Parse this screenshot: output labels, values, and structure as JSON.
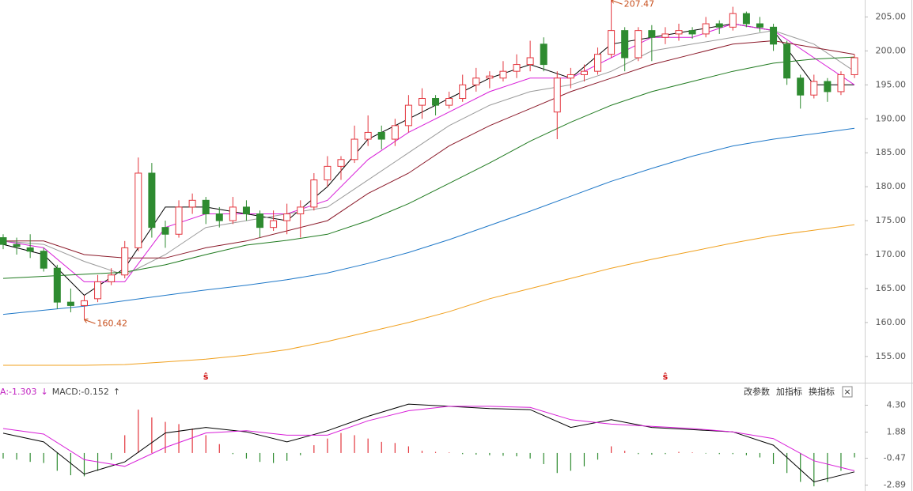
{
  "chart_data": [
    {
      "type": "candlestick",
      "open": [
        172.5,
        171.5,
        171,
        170.5,
        168,
        163,
        162.5,
        163.5,
        166,
        167,
        171,
        182,
        174,
        173,
        177,
        178,
        176,
        175,
        177,
        176,
        174,
        175,
        176,
        177,
        181,
        183,
        184,
        187,
        188,
        187,
        189,
        192,
        193,
        192,
        193,
        195,
        196,
        196,
        197,
        198,
        201,
        191,
        196,
        196.5,
        197,
        199.5,
        203,
        199,
        203,
        202,
        202.5,
        203,
        202.5,
        204,
        203.5,
        205.5,
        204,
        203.5,
        201,
        196,
        193.5,
        195.5,
        194,
        196.5
      ],
      "high": [
        173,
        172.5,
        173,
        171,
        168.5,
        165,
        164,
        167,
        168,
        172,
        184.3,
        183.5,
        175,
        178,
        179,
        178.5,
        177,
        178.5,
        178,
        176.5,
        176.5,
        177.5,
        178,
        182,
        184.5,
        184.5,
        189,
        190.5,
        189,
        190,
        193.5,
        194.5,
        193.5,
        194,
        196.5,
        197.5,
        197,
        198.5,
        199.5,
        201.5,
        202,
        197,
        197.5,
        198,
        200.5,
        207.47,
        203.5,
        203.5,
        203.8,
        203.5,
        204,
        203.5,
        205,
        204.5,
        206.5,
        205.8,
        205,
        204,
        201.5,
        196.5,
        196.5,
        196,
        197,
        199.5
      ],
      "low": [
        170.8,
        170,
        169.5,
        167.5,
        162,
        161.5,
        160.42,
        163,
        165.5,
        166.5,
        170.5,
        172.5,
        171,
        172.5,
        176,
        174.5,
        174,
        174.5,
        175,
        172.5,
        173.5,
        173,
        172.5,
        176.5,
        180,
        181,
        183.5,
        186,
        185.5,
        186,
        188,
        190,
        190.5,
        191.5,
        192.5,
        194,
        194.5,
        195.5,
        196,
        197,
        197,
        187,
        194.5,
        195.5,
        196.5,
        199,
        197,
        198.5,
        198.5,
        201,
        201.5,
        201.8,
        202,
        202.5,
        203,
        203.5,
        202.8,
        200,
        195,
        191.5,
        193,
        192.5,
        193.5,
        196
      ],
      "close": [
        171.5,
        171.2,
        170.5,
        168,
        163,
        162.5,
        163.2,
        166,
        167,
        171,
        182,
        174,
        173,
        177,
        178,
        176,
        175,
        177,
        176,
        174,
        175,
        176,
        177,
        181,
        183,
        184,
        187,
        188,
        187,
        189,
        192,
        193,
        192,
        193,
        195,
        196,
        196.3,
        197,
        198,
        199,
        198,
        196,
        196.5,
        197,
        199.5,
        203,
        199,
        203,
        202,
        202.5,
        203,
        202.5,
        204,
        203.5,
        205.5,
        204,
        203.5,
        201,
        196,
        193.5,
        195.5,
        194,
        196.5,
        199
      ],
      "up_color": "#e3353d",
      "down_color": "#2e8b30",
      "ylim": [
        153,
        207.5
      ],
      "yticks": [
        {
          "value": 155,
          "label": "155.00"
        },
        {
          "value": 160,
          "label": "160.00"
        },
        {
          "value": 165,
          "label": "165.00"
        },
        {
          "value": 170,
          "label": "170.00"
        },
        {
          "value": 175,
          "label": "175.00"
        },
        {
          "value": 180,
          "label": "180.00"
        },
        {
          "value": 185,
          "label": "185.00"
        },
        {
          "value": 190,
          "label": "190.00"
        },
        {
          "value": 195,
          "label": "195.00"
        },
        {
          "value": 200,
          "label": "200.00"
        },
        {
          "value": 205,
          "label": "205.00"
        }
      ],
      "lines": [
        {
          "color": "#000000",
          "x": [
            0,
            3,
            6,
            9,
            12,
            15,
            18,
            21,
            24,
            27,
            30,
            33,
            36,
            39,
            42,
            45,
            48,
            51,
            54,
            57,
            60,
            63
          ],
          "values": [
            171.5,
            170,
            164,
            168,
            177,
            177,
            176,
            175,
            180,
            187,
            190,
            193,
            196,
            198,
            196,
            201,
            202,
            203,
            204,
            203,
            195,
            195
          ]
        },
        {
          "color": "#d81ed8",
          "x": [
            0,
            3,
            6,
            9,
            12,
            15,
            18,
            21,
            24,
            27,
            30,
            33,
            36,
            39,
            42,
            45,
            48,
            51,
            54,
            57,
            60,
            63
          ],
          "values": [
            172,
            171,
            166,
            166,
            174,
            176,
            176,
            176,
            178,
            184,
            188,
            191,
            194,
            196,
            196,
            199,
            202,
            202,
            204,
            203,
            199,
            195
          ]
        },
        {
          "color": "#9a9a9a",
          "x": [
            0,
            3,
            6,
            9,
            12,
            15,
            18,
            21,
            24,
            27,
            30,
            33,
            36,
            39,
            42,
            45,
            48,
            51,
            54,
            57,
            60,
            63
          ],
          "values": [
            172,
            171.5,
            169,
            167,
            170,
            174,
            175,
            176,
            177,
            181,
            185,
            189,
            192,
            194,
            195,
            197,
            200,
            201,
            202,
            203,
            201,
            197
          ]
        },
        {
          "color": "#8b1a2a",
          "x": [
            0,
            3,
            6,
            9,
            12,
            15,
            18,
            21,
            24,
            27,
            30,
            33,
            36,
            39,
            42,
            45,
            48,
            51,
            54,
            57,
            60,
            63
          ],
          "values": [
            172,
            172,
            170,
            169.5,
            169.5,
            171,
            172,
            173.5,
            175,
            179,
            182,
            186,
            189,
            191.5,
            194,
            196,
            198,
            199.5,
            201,
            201.5,
            200.5,
            199.5
          ]
        },
        {
          "color": "#1f7a1f",
          "x": [
            0,
            3,
            6,
            9,
            12,
            15,
            18,
            21,
            24,
            27,
            30,
            33,
            36,
            39,
            42,
            45,
            48,
            51,
            54,
            57,
            60,
            63
          ],
          "values": [
            166.5,
            166.8,
            167.1,
            167.4,
            168.5,
            170,
            171.4,
            172.1,
            173,
            175,
            177.5,
            180.5,
            183.5,
            186.7,
            189.5,
            192,
            194,
            195.5,
            197,
            198.2,
            198.8,
            199.1
          ]
        },
        {
          "color": "#1f78c8",
          "x": [
            0,
            3,
            6,
            9,
            12,
            15,
            18,
            21,
            24,
            27,
            30,
            33,
            36,
            39,
            42,
            45,
            48,
            51,
            54,
            57,
            60,
            63
          ],
          "values": [
            161.2,
            161.8,
            162.4,
            163.2,
            164,
            164.8,
            165.5,
            166.3,
            167.3,
            168.7,
            170.3,
            172.2,
            174.3,
            176.4,
            178.6,
            180.8,
            182.7,
            184.5,
            186,
            187,
            187.8,
            188.6
          ]
        },
        {
          "color": "#f0a01e",
          "x": [
            0,
            3,
            6,
            9,
            12,
            15,
            18,
            21,
            24,
            27,
            30,
            33,
            36,
            39,
            42,
            45,
            48,
            51,
            54,
            57,
            60,
            63
          ],
          "values": [
            153.7,
            153.7,
            153.7,
            153.8,
            154.2,
            154.6,
            155.2,
            156,
            157.2,
            158.6,
            160,
            161.6,
            163.5,
            165,
            166.5,
            168,
            169.3,
            170.5,
            171.7,
            172.8,
            173.6,
            174.4
          ]
        }
      ],
      "annotations": [
        {
          "x": 45,
          "value": 207.47,
          "color": "#c8501e"
        },
        {
          "x": 6,
          "value": 160.42,
          "color": "#c8501e"
        }
      ],
      "signals": {
        "x": [
          15,
          49
        ],
        "labels": [
          "ŝ",
          "ŝ"
        ],
        "color": "#d01010"
      }
    },
    {
      "type": "macd",
      "legend": [
        {
          "text": "A:-1.303",
          "color": "#c020c0"
        },
        {
          "text": "↓",
          "color": "#c020c0"
        },
        {
          "text": "MACD:-0.152",
          "color": "#444444"
        },
        {
          "text": "↑",
          "color": "#444444"
        }
      ],
      "histogram": [
        -0.5,
        -0.6,
        -0.8,
        -0.9,
        -1.6,
        -2.0,
        -2.1,
        -1.6,
        -0.6,
        1.6,
        3.9,
        3.2,
        2.8,
        2.6,
        2.2,
        1.6,
        0.8,
        -0.1,
        -0.5,
        -0.8,
        -0.9,
        -0.7,
        -0.2,
        0.7,
        1.3,
        1.8,
        1.6,
        1.3,
        1.0,
        0.9,
        0.6,
        0.2,
        0.1,
        0.05,
        -0.1,
        -0.15,
        -0.2,
        -0.25,
        -0.3,
        -0.5,
        -1.0,
        -1.8,
        -1.6,
        -1.2,
        -0.6,
        0.6,
        0.2,
        -0.1,
        -0.15,
        -0.1,
        0.1,
        0.05,
        -0.05,
        -0.1,
        -0.1,
        -0.2,
        -0.4,
        -1.0,
        -1.8,
        -2.6,
        -3.0,
        -2.6,
        -1.6,
        -0.4
      ],
      "up_color": "#e3353d",
      "down_color": "#2e8b30",
      "lines": [
        {
          "color": "#000000",
          "x": [
            0,
            3,
            6,
            9,
            12,
            15,
            18,
            21,
            24,
            27,
            30,
            33,
            36,
            39,
            42,
            45,
            48,
            51,
            54,
            57,
            60,
            63
          ],
          "values": [
            1.78,
            1.0,
            -1.9,
            -0.8,
            1.8,
            2.3,
            1.9,
            1.0,
            2.0,
            3.3,
            4.4,
            4.2,
            4.0,
            3.9,
            2.3,
            3.0,
            2.3,
            2.1,
            1.9,
            0.7,
            -2.6,
            -1.7
          ]
        },
        {
          "color": "#d81ed8",
          "x": [
            0,
            3,
            6,
            9,
            12,
            15,
            18,
            21,
            24,
            27,
            30,
            33,
            36,
            39,
            42,
            45,
            48,
            51,
            54,
            57,
            60,
            63
          ],
          "values": [
            2.2,
            1.7,
            -0.6,
            -1.2,
            0.5,
            1.8,
            2.0,
            1.6,
            1.6,
            2.9,
            3.8,
            4.2,
            4.2,
            4.1,
            3.0,
            2.6,
            2.4,
            2.2,
            1.9,
            1.3,
            -0.7,
            -1.6
          ]
        }
      ],
      "ylim": [
        -3.42,
        5.9
      ],
      "yticks": [
        {
          "value": 4.3,
          "label": "4.30"
        },
        {
          "value": 1.88,
          "label": "1.88"
        },
        -0.47,
        -2.89
      ]
    }
  ],
  "toolbar": [
    "改参数",
    "加指标",
    "换指标",
    "×"
  ]
}
